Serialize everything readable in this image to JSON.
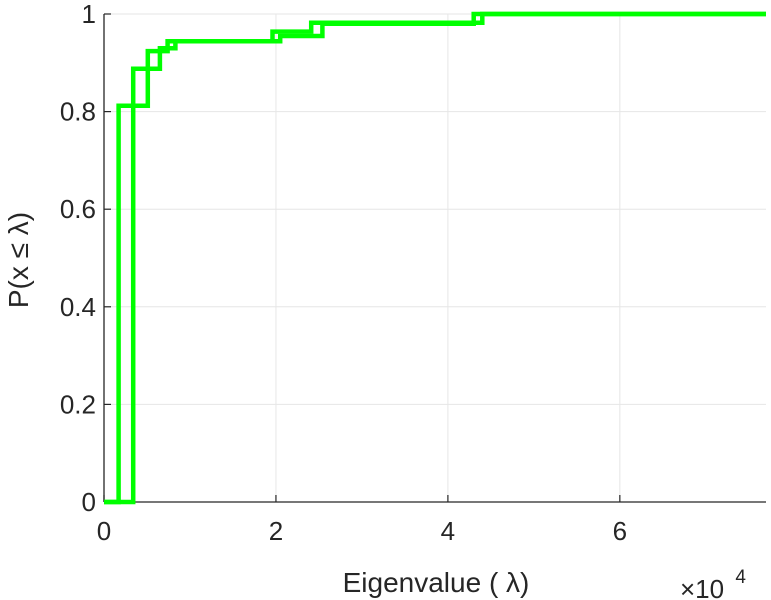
{
  "chart_data": {
    "type": "line",
    "subtype": "stairs-empirical-cdf",
    "title": "",
    "xlabel": "Eigenvalue (   λ)",
    "ylabel": "P(x ≤ λ)",
    "x_exponent_label": "×10",
    "x_exponent_power": "4",
    "x_scale_factor": 10000,
    "xlim": [
      0,
      7.7
    ],
    "ylim": [
      0,
      1
    ],
    "xticks": [
      0,
      2,
      4,
      6
    ],
    "xtick_labels": [
      "0",
      "2",
      "4",
      "6"
    ],
    "yticks": [
      0,
      0.2,
      0.4,
      0.6,
      0.8,
      1
    ],
    "ytick_labels": [
      "0",
      "0.2",
      "0.4",
      "0.6",
      "0.8",
      "1"
    ],
    "grid": true,
    "line_color": "#00ff00",
    "series": [
      {
        "x": [
          0.0,
          0.17,
          0.17,
          0.51,
          0.51,
          0.74,
          0.74,
          1.96,
          1.96,
          2.41,
          2.41,
          4.4,
          4.4,
          7.7
        ],
        "y": [
          0.0,
          0.0,
          0.812,
          0.812,
          0.924,
          0.924,
          0.944,
          0.944,
          0.964,
          0.964,
          0.982,
          0.982,
          1.0,
          1.0
        ]
      },
      {
        "x": [
          0.0,
          0.34,
          0.34,
          0.65,
          0.65,
          0.83,
          0.83,
          2.05,
          2.05,
          2.54,
          2.54,
          4.3,
          4.3,
          7.7
        ],
        "y": [
          0.0,
          0.0,
          0.888,
          0.888,
          0.93,
          0.93,
          0.944,
          0.944,
          0.955,
          0.955,
          0.98,
          0.98,
          1.0,
          1.0
        ]
      }
    ]
  }
}
